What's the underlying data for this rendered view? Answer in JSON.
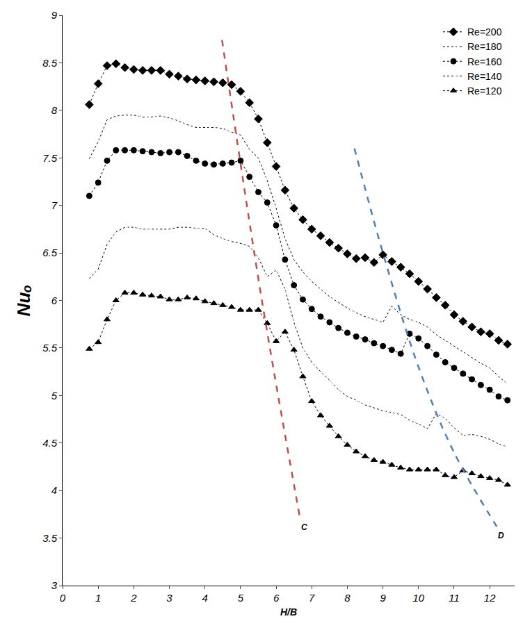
{
  "chart_data": {
    "type": "line",
    "x_label": "H/B",
    "y_label": "Nuₒ",
    "xlim": [
      0,
      12.7
    ],
    "xticks": [
      0,
      1,
      2,
      3,
      4,
      5,
      6,
      7,
      8,
      9,
      10,
      11,
      12
    ],
    "ylim": [
      3,
      9
    ],
    "yticks": [
      3,
      3.5,
      4,
      4.5,
      5,
      5.5,
      6,
      6.5,
      7,
      7.5,
      8,
      8.5,
      9
    ],
    "grid": false,
    "legend": "top right",
    "x": [
      0.75,
      1,
      1.25,
      1.5,
      1.75,
      2,
      2.25,
      2.5,
      2.75,
      3,
      3.25,
      3.5,
      3.75,
      4,
      4.25,
      4.5,
      4.75,
      5,
      5.25,
      5.5,
      5.75,
      6,
      6.25,
      6.5,
      6.75,
      7,
      7.25,
      7.5,
      7.75,
      8,
      8.25,
      8.5,
      8.75,
      9,
      9.25,
      9.5,
      9.75,
      10,
      10.25,
      10.5,
      10.75,
      11,
      11.25,
      11.5,
      11.75,
      12,
      12.25,
      12.5
    ],
    "series": [
      {
        "name": "Re=200",
        "color": "#000000",
        "marker": "diamond",
        "line_style": "dotted",
        "values": [
          8.06,
          8.28,
          8.47,
          8.49,
          8.45,
          8.43,
          8.42,
          8.42,
          8.42,
          8.38,
          8.36,
          8.33,
          8.32,
          8.31,
          8.3,
          8.29,
          8.27,
          8.2,
          8.08,
          7.91,
          7.66,
          7.41,
          7.16,
          6.97,
          6.85,
          6.75,
          6.68,
          6.61,
          6.55,
          6.49,
          6.44,
          6.45,
          6.4,
          6.48,
          6.41,
          6.35,
          6.28,
          6.2,
          6.12,
          6.03,
          5.95,
          5.85,
          5.78,
          5.72,
          5.67,
          5.65,
          5.58,
          5.54
        ]
      },
      {
        "name": "Re=180",
        "color": "#000000",
        "marker": "diamond-open",
        "line_style": "dotted",
        "values": [
          7.49,
          7.67,
          7.9,
          7.94,
          7.95,
          7.95,
          7.93,
          7.93,
          7.94,
          7.92,
          7.89,
          7.85,
          7.82,
          7.82,
          7.82,
          7.81,
          7.77,
          7.74,
          7.59,
          7.5,
          7.26,
          6.97,
          6.65,
          6.43,
          6.3,
          6.2,
          6.12,
          6.04,
          5.98,
          5.92,
          5.87,
          5.83,
          5.8,
          5.77,
          5.94,
          5.85,
          5.8,
          5.77,
          5.72,
          5.64,
          5.58,
          5.52,
          5.46,
          5.4,
          5.34,
          5.29,
          5.2,
          5.12
        ]
      },
      {
        "name": "Re=160",
        "color": "#000000",
        "marker": "circle",
        "line_style": "dotted",
        "values": [
          7.1,
          7.24,
          7.47,
          7.58,
          7.58,
          7.58,
          7.57,
          7.56,
          7.55,
          7.56,
          7.56,
          7.52,
          7.47,
          7.44,
          7.43,
          7.44,
          7.45,
          7.47,
          7.3,
          7.14,
          7.03,
          6.79,
          6.43,
          6.16,
          6.01,
          5.91,
          5.83,
          5.77,
          5.71,
          5.66,
          5.62,
          5.59,
          5.55,
          5.52,
          5.48,
          5.44,
          5.65,
          5.6,
          5.52,
          5.43,
          5.35,
          5.29,
          5.23,
          5.17,
          5.11,
          5.06,
          4.99,
          4.95
        ]
      },
      {
        "name": "Re=140",
        "color": "#000000",
        "marker": "circle-open",
        "line_style": "dotted",
        "values": [
          6.23,
          6.33,
          6.59,
          6.72,
          6.77,
          6.77,
          6.75,
          6.75,
          6.75,
          6.75,
          6.77,
          6.77,
          6.76,
          6.76,
          6.69,
          6.65,
          6.62,
          6.6,
          6.57,
          6.45,
          6.25,
          6.32,
          6.12,
          5.77,
          5.5,
          5.35,
          5.25,
          5.16,
          5.06,
          4.99,
          4.95,
          4.9,
          4.87,
          4.84,
          4.82,
          4.8,
          4.74,
          4.7,
          4.65,
          4.81,
          4.76,
          4.66,
          4.58,
          4.59,
          4.57,
          4.54,
          4.49,
          4.46
        ]
      },
      {
        "name": "Re=120",
        "color": "#000000",
        "marker": "triangle-up",
        "line_style": "dotted",
        "values": [
          5.49,
          5.56,
          5.8,
          6.0,
          6.08,
          6.08,
          6.06,
          6.05,
          6.04,
          6.01,
          6.01,
          6.03,
          6.02,
          5.99,
          5.97,
          5.95,
          5.93,
          5.9,
          5.9,
          5.9,
          5.76,
          5.57,
          5.67,
          5.48,
          5.2,
          4.94,
          4.79,
          4.68,
          4.57,
          4.48,
          4.41,
          4.36,
          4.32,
          4.3,
          4.27,
          4.24,
          4.22,
          4.22,
          4.22,
          4.22,
          4.16,
          4.14,
          4.21,
          4.18,
          4.15,
          4.13,
          4.11,
          4.06
        ]
      }
    ],
    "boundary_lines": [
      {
        "label": "C",
        "color": "#c0504d",
        "line_style": "dashed",
        "x": [
          4.48,
          5.6,
          6.67
        ],
        "y": [
          8.74,
          6.0,
          3.71
        ]
      },
      {
        "label": "D",
        "color": "#4f81bd",
        "line_style": "dashed",
        "x": [
          8.2,
          9.0,
          10.0,
          11.0,
          12.2
        ],
        "y": [
          7.6,
          6.5,
          5.3,
          4.4,
          3.62
        ]
      }
    ]
  }
}
